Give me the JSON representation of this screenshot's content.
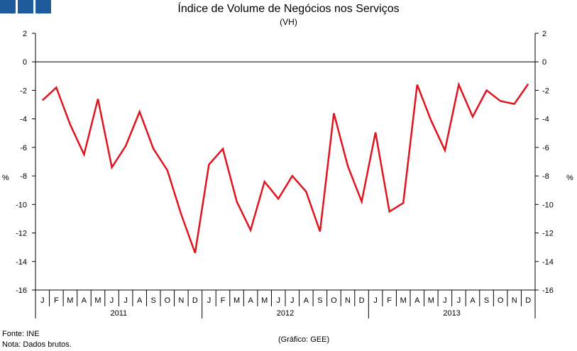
{
  "chart_data": {
    "type": "line",
    "title": "Índice de Volume de Negócios nos Serviços",
    "subtitle": "(VH)",
    "ylabel_left": "%",
    "ylabel_right": "%",
    "ylim": [
      -16,
      2
    ],
    "yticks": [
      2,
      0,
      -2,
      -4,
      -6,
      -8,
      -10,
      -12,
      -14,
      -16
    ],
    "months": [
      "J",
      "F",
      "M",
      "A",
      "M",
      "J",
      "J",
      "A",
      "S",
      "O",
      "N",
      "D",
      "J",
      "F",
      "M",
      "A",
      "M",
      "J",
      "J",
      "A",
      "S",
      "O",
      "N",
      "D",
      "J",
      "F",
      "M",
      "A",
      "M",
      "J",
      "J",
      "A",
      "S",
      "O",
      "N",
      "D"
    ],
    "years": [
      "2011",
      "2012",
      "2013"
    ],
    "series": [
      {
        "name": "VH",
        "color": "#e0141e",
        "values": [
          -2.7,
          -1.8,
          -4.4,
          -6.5,
          -2.6,
          -7.4,
          -5.9,
          -3.5,
          -6.1,
          -7.6,
          -10.7,
          -13.4,
          -7.2,
          -6.1,
          -9.8,
          -11.8,
          -8.4,
          -9.6,
          -8.0,
          -9.1,
          -11.9,
          -3.6,
          -7.3,
          -9.8,
          -4.95,
          -10.5,
          -9.9,
          -1.6,
          -4.1,
          -6.2,
          -1.6,
          -3.85,
          -2.0,
          -2.75,
          -2.95,
          -1.55
        ]
      }
    ]
  },
  "footer": {
    "source": "Fonte: INE",
    "note": "Nota: Dados brutos.",
    "credit": "(Gráfico: GEE)"
  }
}
